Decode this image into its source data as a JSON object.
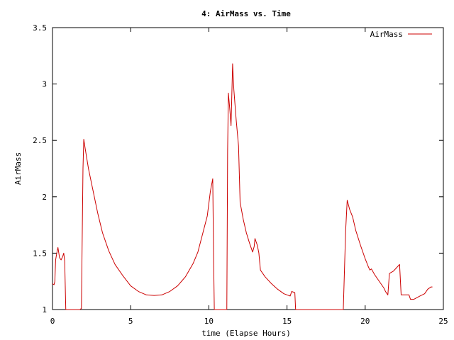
{
  "chart_data": {
    "type": "line",
    "title": "4: AirMass vs. Time",
    "xlabel": "time (Elapse Hours)",
    "ylabel": "AirMass",
    "xlim": [
      0,
      25
    ],
    "ylim": [
      1,
      3.5
    ],
    "xticks": [
      0,
      5,
      10,
      15,
      20,
      25
    ],
    "xtick_labels": [
      "0",
      "5",
      "10",
      "15",
      "20",
      "25"
    ],
    "yticks": [
      1,
      1.5,
      2,
      2.5,
      3,
      3.5
    ],
    "ytick_labels": [
      "1",
      "1.5",
      "2",
      "2.5",
      "3",
      "3.5"
    ],
    "grid": false,
    "legend_position": "top-right",
    "series": [
      {
        "name": "AirMass",
        "color": "#cc0000",
        "points": [
          [
            0.0,
            1.23
          ],
          [
            0.1,
            1.22
          ],
          [
            0.15,
            1.25
          ],
          [
            0.2,
            1.44
          ],
          [
            0.3,
            1.52
          ],
          [
            0.35,
            1.55
          ],
          [
            0.45,
            1.46
          ],
          [
            0.55,
            1.44
          ],
          [
            0.65,
            1.47
          ],
          [
            0.72,
            1.5
          ],
          [
            0.78,
            1.43
          ],
          [
            0.85,
            1.0
          ],
          [
            1.6,
            1.0
          ],
          [
            1.75,
            1.0
          ],
          [
            1.85,
            1.01
          ],
          [
            1.95,
            2.25
          ],
          [
            2.0,
            2.51
          ],
          [
            2.1,
            2.42
          ],
          [
            2.3,
            2.25
          ],
          [
            2.6,
            2.05
          ],
          [
            2.9,
            1.85
          ],
          [
            3.2,
            1.68
          ],
          [
            3.6,
            1.52
          ],
          [
            4.0,
            1.4
          ],
          [
            4.5,
            1.3
          ],
          [
            5.0,
            1.21
          ],
          [
            5.5,
            1.16
          ],
          [
            6.0,
            1.13
          ],
          [
            6.5,
            1.125
          ],
          [
            7.0,
            1.13
          ],
          [
            7.5,
            1.16
          ],
          [
            8.0,
            1.21
          ],
          [
            8.5,
            1.29
          ],
          [
            9.0,
            1.41
          ],
          [
            9.3,
            1.51
          ],
          [
            9.6,
            1.67
          ],
          [
            9.9,
            1.83
          ],
          [
            10.1,
            2.05
          ],
          [
            10.25,
            2.16
          ],
          [
            10.3,
            1.5
          ],
          [
            10.35,
            1.0
          ],
          [
            11.15,
            1.0
          ],
          [
            11.2,
            2.4
          ],
          [
            11.25,
            2.92
          ],
          [
            11.35,
            2.76
          ],
          [
            11.42,
            2.63
          ],
          [
            11.52,
            3.18
          ],
          [
            11.6,
            2.95
          ],
          [
            11.75,
            2.68
          ],
          [
            11.9,
            2.45
          ],
          [
            12.0,
            1.95
          ],
          [
            12.2,
            1.8
          ],
          [
            12.4,
            1.68
          ],
          [
            12.6,
            1.59
          ],
          [
            12.8,
            1.51
          ],
          [
            12.9,
            1.56
          ],
          [
            12.95,
            1.63
          ],
          [
            13.1,
            1.57
          ],
          [
            13.2,
            1.5
          ],
          [
            13.3,
            1.35
          ],
          [
            13.6,
            1.29
          ],
          [
            14.0,
            1.23
          ],
          [
            14.4,
            1.18
          ],
          [
            14.8,
            1.14
          ],
          [
            15.0,
            1.13
          ],
          [
            15.2,
            1.12
          ],
          [
            15.3,
            1.16
          ],
          [
            15.5,
            1.15
          ],
          [
            15.55,
            1.0
          ],
          [
            18.6,
            1.0
          ],
          [
            18.75,
            1.7
          ],
          [
            18.85,
            1.97
          ],
          [
            19.0,
            1.89
          ],
          [
            19.2,
            1.82
          ],
          [
            19.4,
            1.7
          ],
          [
            19.7,
            1.57
          ],
          [
            20.0,
            1.45
          ],
          [
            20.2,
            1.38
          ],
          [
            20.3,
            1.35
          ],
          [
            20.4,
            1.36
          ],
          [
            20.6,
            1.31
          ],
          [
            20.8,
            1.27
          ],
          [
            21.0,
            1.23
          ],
          [
            21.2,
            1.19
          ],
          [
            21.3,
            1.16
          ],
          [
            21.45,
            1.13
          ],
          [
            21.55,
            1.32
          ],
          [
            21.8,
            1.34
          ],
          [
            22.0,
            1.37
          ],
          [
            22.2,
            1.4
          ],
          [
            22.3,
            1.13
          ],
          [
            22.5,
            1.13
          ],
          [
            22.8,
            1.13
          ],
          [
            22.9,
            1.09
          ],
          [
            23.1,
            1.09
          ],
          [
            23.5,
            1.12
          ],
          [
            23.8,
            1.14
          ],
          [
            24.0,
            1.18
          ],
          [
            24.2,
            1.2
          ],
          [
            24.3,
            1.2
          ]
        ]
      }
    ]
  }
}
